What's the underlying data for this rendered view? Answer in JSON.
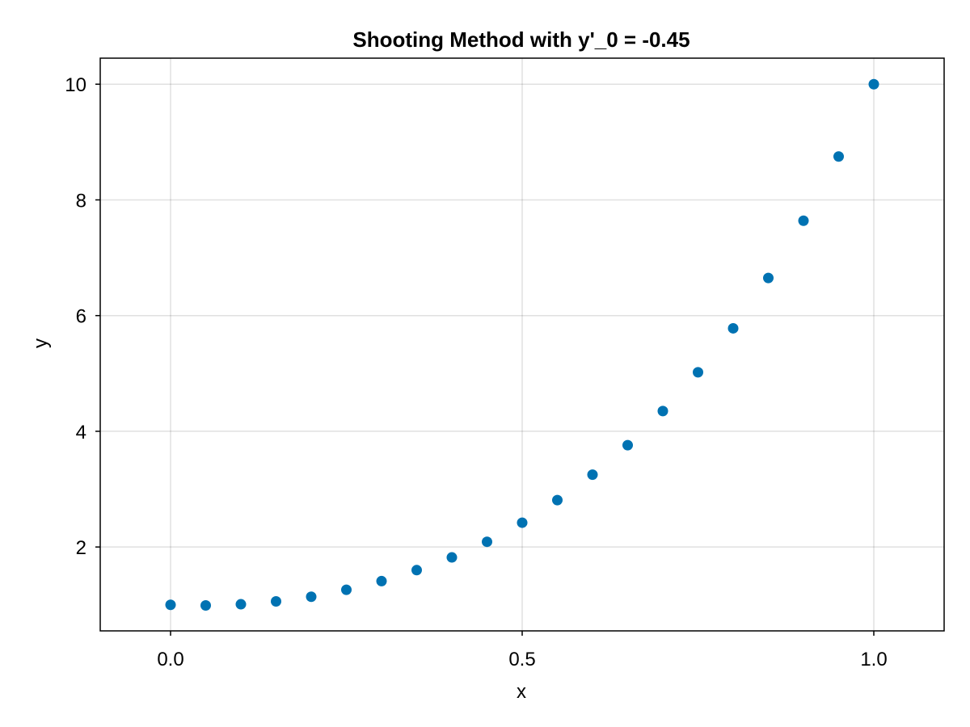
{
  "chart_data": {
    "type": "scatter",
    "title": "Shooting Method with y'_0 = -0.45",
    "xlabel": "x",
    "ylabel": "y",
    "xlim": [
      -0.1,
      1.1
    ],
    "ylim": [
      0.55,
      10.45
    ],
    "xticks": [
      {
        "value": 0.0,
        "label": "0.0"
      },
      {
        "value": 0.5,
        "label": "0.5"
      },
      {
        "value": 1.0,
        "label": "1.0"
      }
    ],
    "yticks": [
      {
        "value": 2,
        "label": "2"
      },
      {
        "value": 4,
        "label": "4"
      },
      {
        "value": 6,
        "label": "6"
      },
      {
        "value": 8,
        "label": "8"
      },
      {
        "value": 10,
        "label": "10"
      }
    ],
    "grid": true,
    "colors": {
      "marker": "#0072b2",
      "frame": "#000000"
    },
    "series": [
      {
        "x": [
          0.0,
          0.05,
          0.1,
          0.15,
          0.2,
          0.25,
          0.3,
          0.35,
          0.4,
          0.45,
          0.5,
          0.55,
          0.6,
          0.65,
          0.7,
          0.75,
          0.8,
          0.85,
          0.9,
          0.95,
          1.0
        ],
        "y": [
          1.0,
          0.99,
          1.01,
          1.06,
          1.14,
          1.26,
          1.41,
          1.6,
          1.82,
          2.09,
          2.42,
          2.81,
          3.25,
          3.76,
          4.35,
          5.02,
          5.78,
          6.65,
          7.64,
          8.75,
          10.0
        ]
      }
    ]
  }
}
